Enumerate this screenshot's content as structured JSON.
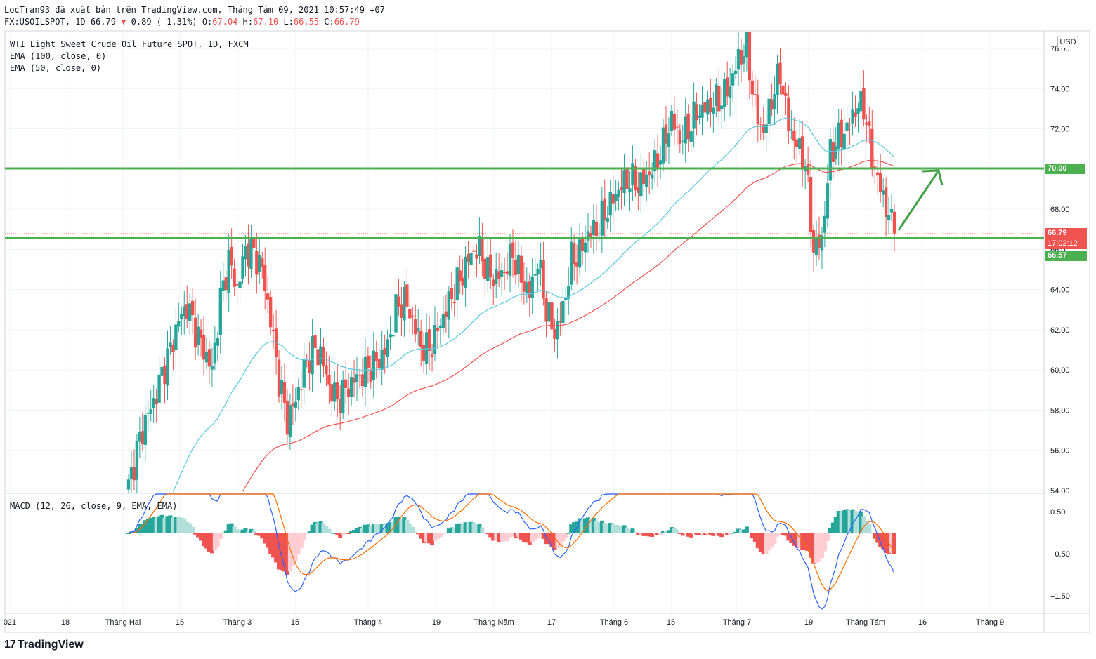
{
  "header": {
    "line1": "LocTran93 đã xuất bản trên TradingView.com, Tháng Tám 09, 2021 10:57:49 +07",
    "symbol_prefix": "FX:USOILSPOT, 1D 66.79",
    "change": "-0.89 (-1.31%)",
    "o_label": "O:",
    "o_val": "67.04",
    "h_label": "H:",
    "h_val": "67.10",
    "l_label": "L:",
    "l_val": "66.55",
    "c_label": "C:",
    "c_val": "66.79"
  },
  "legend": {
    "title": "WTI Light Sweet Crude Oil Future SPOT, 1D, FXCM",
    "ema100": "EMA (100, close, 0)",
    "ema50": "EMA (50, close, 0)",
    "macd": "MACD (12, 26, close, 9, EMA, EMA)"
  },
  "currency_label": "USD",
  "price_tags": {
    "level_high": "70.00",
    "last_price": "66.79",
    "countdown": "17:02:12",
    "level_low": "66.57"
  },
  "footer": {
    "brand": "TradingView"
  },
  "colors": {
    "up": "#26a69a",
    "down": "#ef5350",
    "ema50": "#5ac8e0",
    "ema100": "#ef5350",
    "level_line": "#4caf50",
    "macd_line": "#2962ff",
    "signal_line": "#ff6d00",
    "hist_up_strong": "#26a69a",
    "hist_up_weak": "#b2dfdb",
    "hist_down_strong": "#ef5350",
    "hist_down_weak": "#ffcdd2"
  },
  "chart_data": {
    "type": "candlestick",
    "title": "WTI Light Sweet Crude Oil Future SPOT, 1D, FXCM",
    "ylim": [
      54,
      76.8
    ],
    "y_ticks": [
      "76.00",
      "74.00",
      "72.00",
      "70.00",
      "68.00",
      "66.00",
      "64.00",
      "62.00",
      "60.00",
      "58.00",
      "56.00",
      "54.00"
    ],
    "x_ticks": [
      "021",
      "18",
      "Tháng Hai",
      "15",
      "Tháng 3",
      "15",
      "Tháng 4",
      "19",
      "Tháng Năm",
      "17",
      "Tháng 6",
      "15",
      "Tháng 7",
      "19",
      "Tháng Tám",
      "16",
      "Tháng 9"
    ],
    "horizontal_levels": [
      70.0,
      66.57
    ],
    "last_price": 66.79,
    "arrow": {
      "from": 66.8,
      "to": 70.0
    },
    "anchors": [
      [
        0,
        54.2
      ],
      [
        3,
        56.0
      ],
      [
        6,
        57.5
      ],
      [
        9,
        58.4
      ],
      [
        12,
        59.8
      ],
      [
        15,
        61.0
      ],
      [
        18,
        62.5
      ],
      [
        21,
        63.2
      ],
      [
        24,
        62.0
      ],
      [
        27,
        61.0
      ],
      [
        30,
        60.0
      ],
      [
        33,
        63.5
      ],
      [
        36,
        65.5
      ],
      [
        39,
        64.0
      ],
      [
        42,
        66.0
      ],
      [
        45,
        65.8
      ],
      [
        48,
        65.0
      ],
      [
        51,
        62.5
      ],
      [
        54,
        59.5
      ],
      [
        57,
        57.5
      ],
      [
        60,
        58.5
      ],
      [
        63,
        60.0
      ],
      [
        66,
        61.0
      ],
      [
        69,
        60.8
      ],
      [
        72,
        59.2
      ],
      [
        75,
        58.5
      ],
      [
        78,
        59.0
      ],
      [
        81,
        59.5
      ],
      [
        84,
        59.8
      ],
      [
        87,
        60.2
      ],
      [
        90,
        60.5
      ],
      [
        93,
        61.2
      ],
      [
        96,
        63.0
      ],
      [
        99,
        63.5
      ],
      [
        102,
        62.5
      ],
      [
        105,
        61.2
      ],
      [
        108,
        61.0
      ],
      [
        111,
        62.0
      ],
      [
        114,
        63.0
      ],
      [
        117,
        64.0
      ],
      [
        120,
        64.8
      ],
      [
        123,
        65.8
      ],
      [
        126,
        66.0
      ],
      [
        129,
        64.8
      ],
      [
        132,
        64.6
      ],
      [
        135,
        64.9
      ],
      [
        138,
        65.8
      ],
      [
        141,
        64.5
      ],
      [
        144,
        63.8
      ],
      [
        147,
        65.5
      ],
      [
        150,
        63.0
      ],
      [
        153,
        61.8
      ],
      [
        156,
        63.0
      ],
      [
        159,
        65.5
      ],
      [
        162,
        65.8
      ],
      [
        165,
        66.8
      ],
      [
        168,
        67.0
      ],
      [
        171,
        67.8
      ],
      [
        174,
        68.5
      ],
      [
        177,
        69.2
      ],
      [
        180,
        69.5
      ],
      [
        183,
        69.2
      ],
      [
        186,
        69.6
      ],
      [
        189,
        70.2
      ],
      [
        192,
        71.2
      ],
      [
        195,
        72.5
      ],
      [
        198,
        71.5
      ],
      [
        201,
        72.0
      ],
      [
        204,
        72.8
      ],
      [
        207,
        73.0
      ],
      [
        210,
        73.3
      ],
      [
        213,
        73.5
      ],
      [
        216,
        74.2
      ],
      [
        219,
        75.5
      ],
      [
        222,
        76.0
      ],
      [
        225,
        73.0
      ],
      [
        228,
        71.8
      ],
      [
        231,
        73.5
      ],
      [
        234,
        74.8
      ],
      [
        237,
        72.2
      ],
      [
        240,
        71.2
      ],
      [
        243,
        70.3
      ],
      [
        246,
        66.0
      ],
      [
        249,
        66.5
      ],
      [
        252,
        70.8
      ],
      [
        255,
        71.5
      ],
      [
        258,
        72.0
      ],
      [
        261,
        73.0
      ],
      [
        264,
        73.2
      ],
      [
        267,
        70.5
      ],
      [
        270,
        69.0
      ],
      [
        273,
        67.7
      ],
      [
        275,
        66.8
      ]
    ]
  }
}
